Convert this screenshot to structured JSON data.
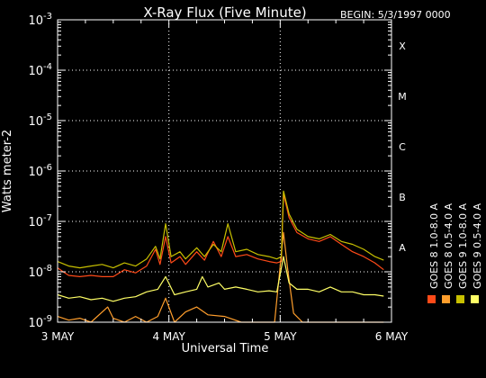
{
  "chart_data": {
    "type": "line",
    "title": "X-Ray Flux (Five Minute)",
    "begin": "BEGIN: 5/3/1997 0000",
    "xlabel": "Universal Time",
    "ylabel": "Watts meter-2",
    "y_scale": "log",
    "ylim": [
      1e-09,
      0.001
    ],
    "x_ticks": [
      {
        "value": 0,
        "label": "3 MAY"
      },
      {
        "value": 1,
        "label": "4 MAY"
      },
      {
        "value": 2,
        "label": "5 MAY"
      },
      {
        "value": 3,
        "label": "6 MAY"
      }
    ],
    "y_ticks": [
      {
        "exp": -9,
        "base": "10",
        "sup": "-9"
      },
      {
        "exp": -8,
        "base": "10",
        "sup": "-8"
      },
      {
        "exp": -7,
        "base": "10",
        "sup": "-7"
      },
      {
        "exp": -6,
        "base": "10",
        "sup": "-6"
      },
      {
        "exp": -5,
        "base": "10",
        "sup": "-5"
      },
      {
        "exp": -4,
        "base": "10",
        "sup": "-4"
      },
      {
        "exp": -3,
        "base": "10",
        "sup": "-3"
      }
    ],
    "flare_classes": [
      {
        "label": "A",
        "exp": -8
      },
      {
        "label": "B",
        "exp": -7
      },
      {
        "label": "C",
        "exp": -6
      },
      {
        "label": "M",
        "exp": -5
      },
      {
        "label": "X",
        "exp": -4
      }
    ],
    "grid": "dotted horizontal at each decade and vertical at day boundaries",
    "series": [
      {
        "name": "GOES 8 1.0-8.0 A",
        "color": "#ff4a18",
        "points": [
          [
            0.0,
            1.2e-08
          ],
          [
            0.05,
            1e-08
          ],
          [
            0.1,
            8.5e-09
          ],
          [
            0.2,
            8e-09
          ],
          [
            0.3,
            8.5e-09
          ],
          [
            0.4,
            8e-09
          ],
          [
            0.5,
            8e-09
          ],
          [
            0.6,
            1.1e-08
          ],
          [
            0.7,
            9.5e-09
          ],
          [
            0.8,
            1.3e-08
          ],
          [
            0.88,
            2.8e-08
          ],
          [
            0.92,
            1.4e-08
          ],
          [
            0.97,
            5e-08
          ],
          [
            1.02,
            1.5e-08
          ],
          [
            1.1,
            2e-08
          ],
          [
            1.15,
            1.4e-08
          ],
          [
            1.25,
            2.5e-08
          ],
          [
            1.32,
            1.7e-08
          ],
          [
            1.4,
            4e-08
          ],
          [
            1.47,
            2e-08
          ],
          [
            1.53,
            5e-08
          ],
          [
            1.6,
            2e-08
          ],
          [
            1.7,
            2.2e-08
          ],
          [
            1.8,
            1.8e-08
          ],
          [
            1.9,
            1.6e-08
          ],
          [
            1.97,
            1.5e-08
          ],
          [
            2.01,
            1.6e-08
          ],
          [
            2.03,
            3.5e-07
          ],
          [
            2.08,
            1.2e-07
          ],
          [
            2.15,
            6e-08
          ],
          [
            2.25,
            4.5e-08
          ],
          [
            2.35,
            4e-08
          ],
          [
            2.45,
            5e-08
          ],
          [
            2.55,
            3.5e-08
          ],
          [
            2.65,
            2.5e-08
          ],
          [
            2.75,
            2e-08
          ],
          [
            2.85,
            1.5e-08
          ],
          [
            2.93,
            1.1e-08
          ]
        ]
      },
      {
        "name": "GOES 8 0.5-4.0 A",
        "color": "#ff9e2c",
        "points": [
          [
            0.0,
            1.3e-09
          ],
          [
            0.1,
            1.1e-09
          ],
          [
            0.2,
            1.2e-09
          ],
          [
            0.3,
            1e-09
          ],
          [
            0.45,
            2e-09
          ],
          [
            0.5,
            1.2e-09
          ],
          [
            0.6,
            1e-09
          ],
          [
            0.7,
            1.3e-09
          ],
          [
            0.8,
            1e-09
          ],
          [
            0.9,
            1.3e-09
          ],
          [
            0.97,
            3e-09
          ],
          [
            1.05,
            1e-09
          ],
          [
            1.15,
            1.6e-09
          ],
          [
            1.25,
            2e-09
          ],
          [
            1.35,
            1.4e-09
          ],
          [
            1.5,
            1.3e-09
          ],
          [
            1.65,
            1e-09
          ],
          [
            1.8,
            1e-09
          ],
          [
            1.95,
            1e-09
          ],
          [
            2.03,
            6e-08
          ],
          [
            2.07,
            1e-08
          ],
          [
            2.12,
            1.5e-09
          ],
          [
            2.2,
            1e-09
          ],
          [
            2.4,
            1e-09
          ],
          [
            2.6,
            1e-09
          ],
          [
            2.93,
            1e-09
          ]
        ]
      },
      {
        "name": "GOES 9 1.0-8.0 A",
        "color": "#c8c000",
        "points": [
          [
            0.0,
            1.6e-08
          ],
          [
            0.1,
            1.3e-08
          ],
          [
            0.2,
            1.2e-08
          ],
          [
            0.3,
            1.3e-08
          ],
          [
            0.4,
            1.4e-08
          ],
          [
            0.5,
            1.2e-08
          ],
          [
            0.6,
            1.5e-08
          ],
          [
            0.7,
            1.3e-08
          ],
          [
            0.8,
            1.8e-08
          ],
          [
            0.88,
            3.2e-08
          ],
          [
            0.92,
            1.8e-08
          ],
          [
            0.97,
            9e-08
          ],
          [
            1.02,
            2e-08
          ],
          [
            1.1,
            2.5e-08
          ],
          [
            1.15,
            1.8e-08
          ],
          [
            1.25,
            3e-08
          ],
          [
            1.32,
            2e-08
          ],
          [
            1.4,
            3.5e-08
          ],
          [
            1.47,
            2.5e-08
          ],
          [
            1.53,
            9e-08
          ],
          [
            1.6,
            2.5e-08
          ],
          [
            1.7,
            2.8e-08
          ],
          [
            1.8,
            2.2e-08
          ],
          [
            1.9,
            2e-08
          ],
          [
            1.97,
            1.8e-08
          ],
          [
            2.01,
            2e-08
          ],
          [
            2.03,
            4e-07
          ],
          [
            2.08,
            1.4e-07
          ],
          [
            2.15,
            7e-08
          ],
          [
            2.25,
            5e-08
          ],
          [
            2.35,
            4.5e-08
          ],
          [
            2.45,
            5.5e-08
          ],
          [
            2.55,
            4e-08
          ],
          [
            2.65,
            3.5e-08
          ],
          [
            2.75,
            2.8e-08
          ],
          [
            2.85,
            2e-08
          ],
          [
            2.93,
            1.7e-08
          ]
        ]
      },
      {
        "name": "GOES 9 0.5-4.0 A",
        "color": "#ffff66",
        "points": [
          [
            0.0,
            3.5e-09
          ],
          [
            0.1,
            3e-09
          ],
          [
            0.2,
            3.2e-09
          ],
          [
            0.3,
            2.8e-09
          ],
          [
            0.4,
            3e-09
          ],
          [
            0.5,
            2.6e-09
          ],
          [
            0.6,
            3e-09
          ],
          [
            0.7,
            3.2e-09
          ],
          [
            0.8,
            4e-09
          ],
          [
            0.9,
            4.5e-09
          ],
          [
            0.97,
            8e-09
          ],
          [
            1.05,
            3.5e-09
          ],
          [
            1.15,
            4e-09
          ],
          [
            1.25,
            4.5e-09
          ],
          [
            1.3,
            8e-09
          ],
          [
            1.35,
            5e-09
          ],
          [
            1.45,
            6e-09
          ],
          [
            1.5,
            4.5e-09
          ],
          [
            1.6,
            5e-09
          ],
          [
            1.7,
            4.5e-09
          ],
          [
            1.8,
            4e-09
          ],
          [
            1.9,
            4.2e-09
          ],
          [
            1.97,
            4e-09
          ],
          [
            2.03,
            2e-08
          ],
          [
            2.08,
            6e-09
          ],
          [
            2.15,
            4.5e-09
          ],
          [
            2.25,
            4.5e-09
          ],
          [
            2.35,
            4e-09
          ],
          [
            2.45,
            5e-09
          ],
          [
            2.55,
            4e-09
          ],
          [
            2.65,
            4e-09
          ],
          [
            2.75,
            3.5e-09
          ],
          [
            2.85,
            3.5e-09
          ],
          [
            2.93,
            3.3e-09
          ]
        ]
      }
    ],
    "legend": [
      {
        "label": "GOES 8 1.0-8.0 A",
        "color": "#ff4a18"
      },
      {
        "label": "GOES 8 0.5-4.0 A",
        "color": "#ff9e2c"
      },
      {
        "label": "GOES 9 1.0-8.0 A",
        "color": "#c8c000"
      },
      {
        "label": "GOES 9 0.5-4.0 A",
        "color": "#ffff66"
      }
    ],
    "legend_position": "right, vertical text"
  }
}
